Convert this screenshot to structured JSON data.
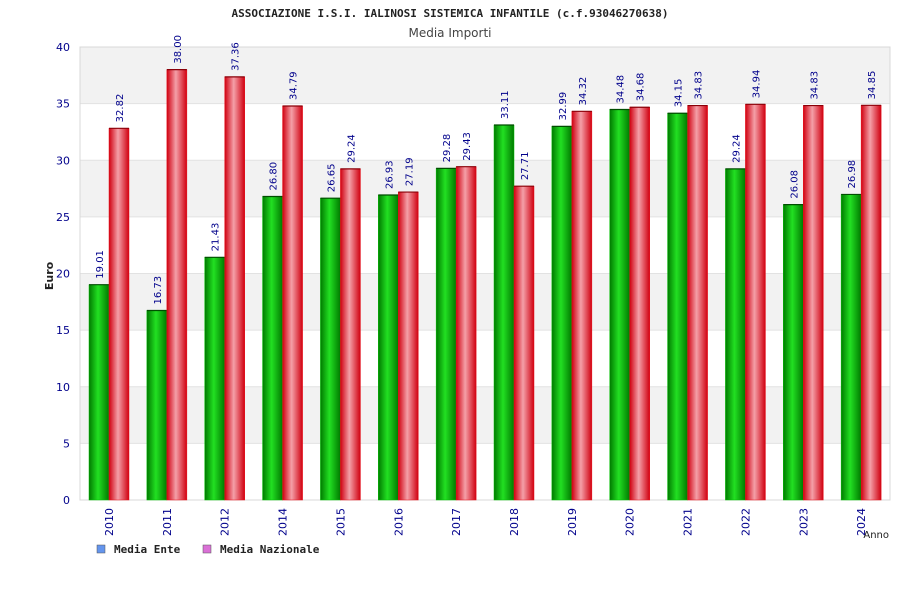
{
  "chart_data": {
    "type": "bar",
    "title": "ASSOCIAZIONE I.S.I. IALINOSI SISTEMICA INFANTILE (c.f.93046270638)",
    "subtitle": "Media Importi",
    "xlabel": "Anno",
    "ylabel": "Euro",
    "ylim": [
      0,
      40
    ],
    "yticks": [
      "0",
      "5",
      "10",
      "15",
      "20",
      "25",
      "30",
      "35",
      "40"
    ],
    "grid": true,
    "legend_position": "bottom-left",
    "categories": [
      "2010",
      "2011",
      "2012",
      "2014",
      "2015",
      "2016",
      "2017",
      "2018",
      "2019",
      "2020",
      "2021",
      "2022",
      "2023",
      "2024"
    ],
    "series": [
      {
        "name": "Media Ente",
        "color": "#00c000",
        "legend_color": "#6495ed",
        "values": [
          19.01,
          16.73,
          21.43,
          26.8,
          26.65,
          26.93,
          29.28,
          33.11,
          32.99,
          34.48,
          34.15,
          29.24,
          26.08,
          26.98
        ],
        "labels": [
          "19.01",
          "16.73",
          "21.43",
          "26.80",
          "26.65",
          "26.93",
          "29.28",
          "33.11",
          "32.99",
          "34.48",
          "34.15",
          "29.24",
          "26.08",
          "26.98"
        ]
      },
      {
        "name": "Media Nazionale",
        "color": "#e8101a",
        "legend_color": "#da70d6",
        "values": [
          32.82,
          38.0,
          37.36,
          34.79,
          29.24,
          27.19,
          29.43,
          27.71,
          34.32,
          34.68,
          34.83,
          34.94,
          34.83,
          34.85
        ],
        "labels": [
          "32.82",
          "38.00",
          "37.36",
          "34.79",
          "29.24",
          "27.19",
          "29.43",
          "27.71",
          "34.32",
          "34.68",
          "34.83",
          "34.94",
          "34.83",
          "34.85"
        ]
      }
    ]
  }
}
